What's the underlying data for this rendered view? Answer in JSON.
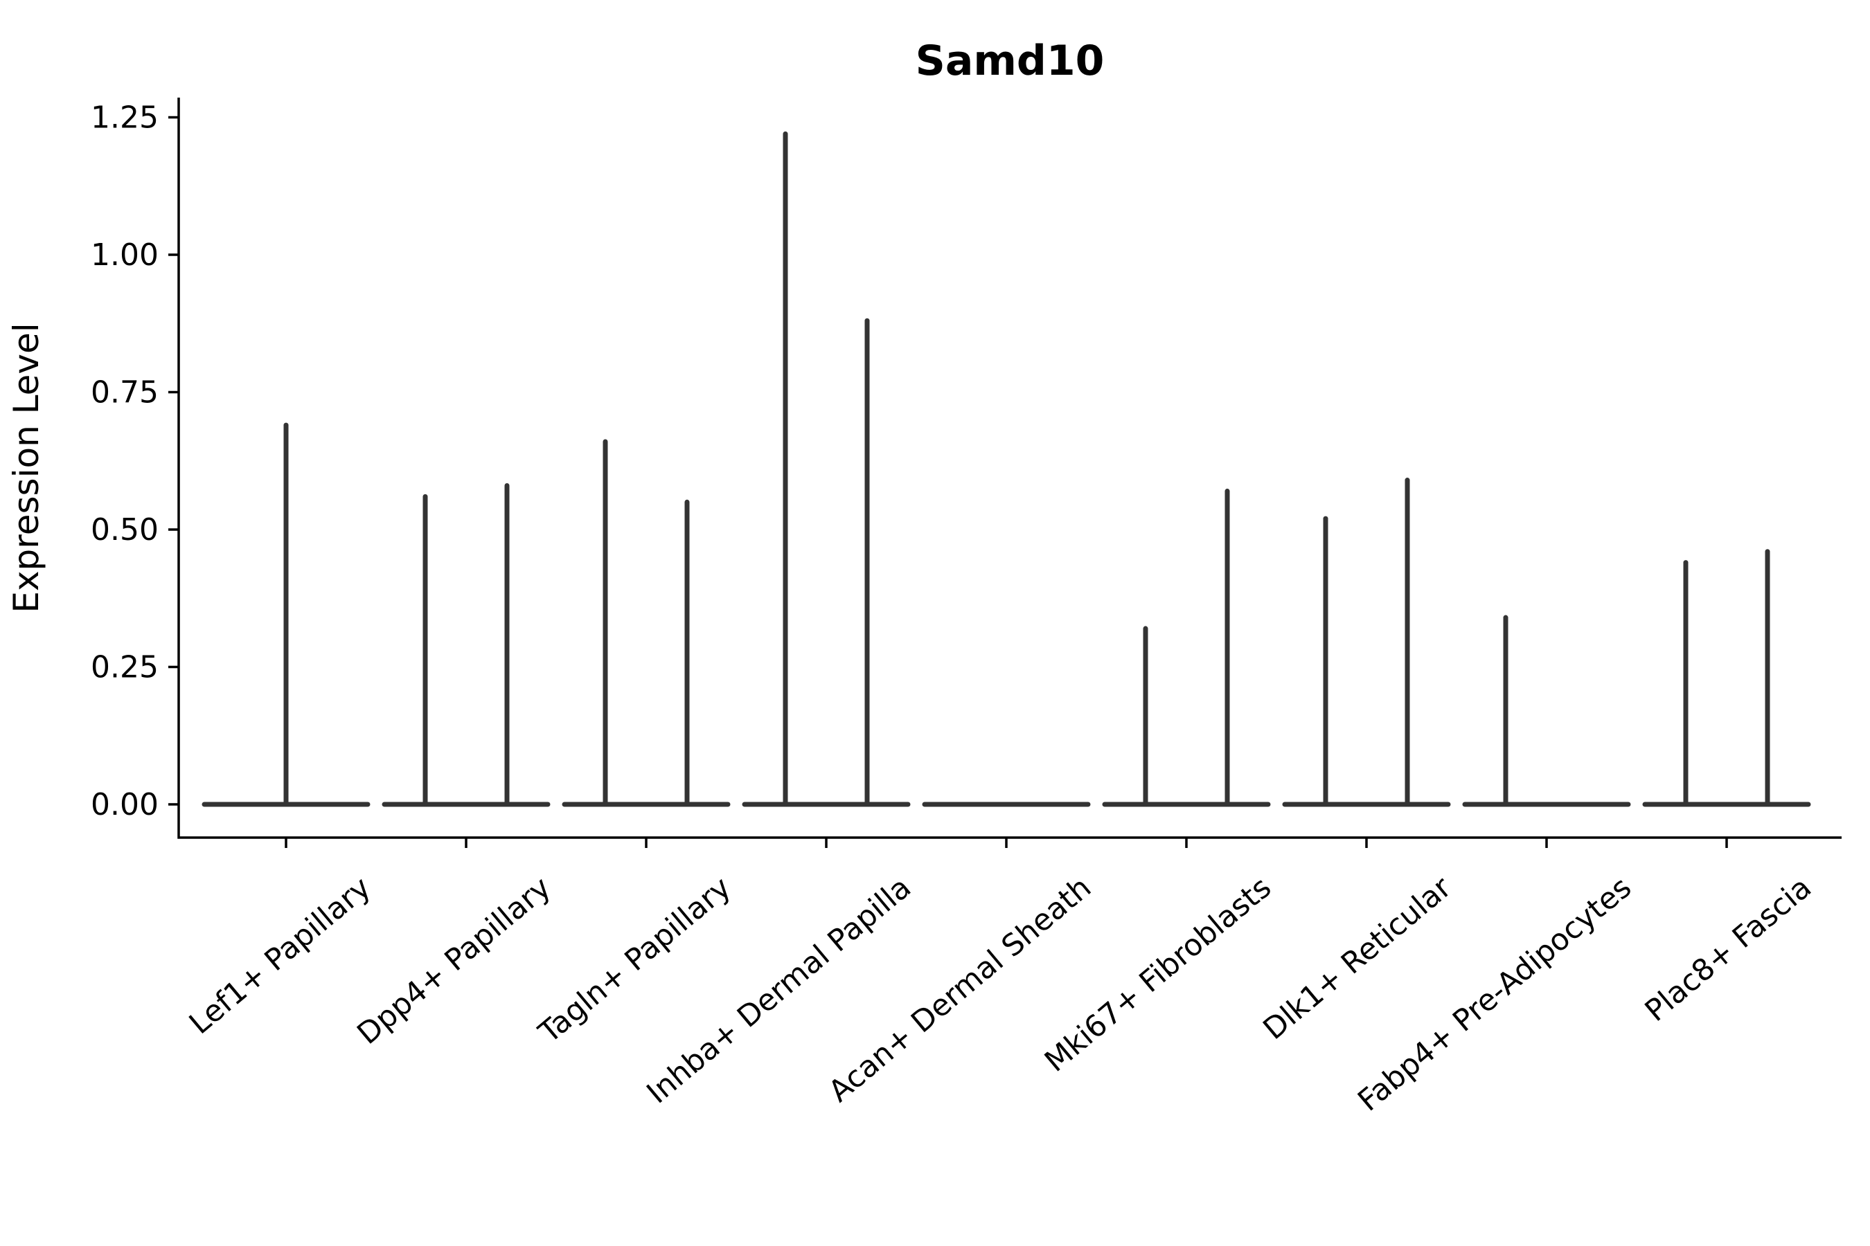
{
  "chart_data": {
    "type": "violin",
    "title": "Samd10",
    "xlabel": "",
    "ylabel": "Expression Level",
    "grid": false,
    "legend": null,
    "ylim": [
      -0.06,
      1.29
    ],
    "ytick_values": [
      0.0,
      0.25,
      0.5,
      0.75,
      1.0,
      1.25
    ],
    "ytick_labels": [
      "0.00",
      "0.25",
      "0.50",
      "0.75",
      "1.00",
      "1.25"
    ],
    "x_label_rotation_deg": 40,
    "axis_color": "#000000",
    "violin_color": "#333333",
    "description": "Single-gene expression violin plot; each violin is collapsed flat at 0 with a thin vertical tail reaching the maximum expression value. Most categories contain two side-by-side violins (two groups); flat entries have max 0.",
    "categories": [
      {
        "label": "Lef1+ Papillary",
        "violins": [
          {
            "span": "full",
            "max": 0.69
          }
        ]
      },
      {
        "label": "Dpp4+ Papillary",
        "violins": [
          {
            "span": "left",
            "max": 0.56
          },
          {
            "span": "right",
            "max": 0.58
          }
        ]
      },
      {
        "label": "Tagln+ Papillary",
        "violins": [
          {
            "span": "left",
            "max": 0.66
          },
          {
            "span": "right",
            "max": 0.55
          }
        ]
      },
      {
        "label": "Inhba+ Dermal Papilla",
        "violins": [
          {
            "span": "left",
            "max": 1.22
          },
          {
            "span": "right",
            "max": 0.88
          }
        ]
      },
      {
        "label": "Acan+ Dermal Sheath",
        "violins": [
          {
            "span": "full",
            "max": 0.0
          }
        ]
      },
      {
        "label": "Mki67+ Fibroblasts",
        "violins": [
          {
            "span": "left",
            "max": 0.32
          },
          {
            "span": "right",
            "max": 0.57
          }
        ]
      },
      {
        "label": "Dlk1+ Reticular",
        "violins": [
          {
            "span": "left",
            "max": 0.52
          },
          {
            "span": "right",
            "max": 0.59
          }
        ]
      },
      {
        "label": "Fabp4+ Pre-Adipocytes",
        "violins": [
          {
            "span": "left",
            "max": 0.34
          },
          {
            "span": "right",
            "max": 0.0
          }
        ]
      },
      {
        "label": "Plac8+ Fascia",
        "violins": [
          {
            "span": "left",
            "max": 0.44
          },
          {
            "span": "right",
            "max": 0.46
          }
        ]
      }
    ]
  }
}
